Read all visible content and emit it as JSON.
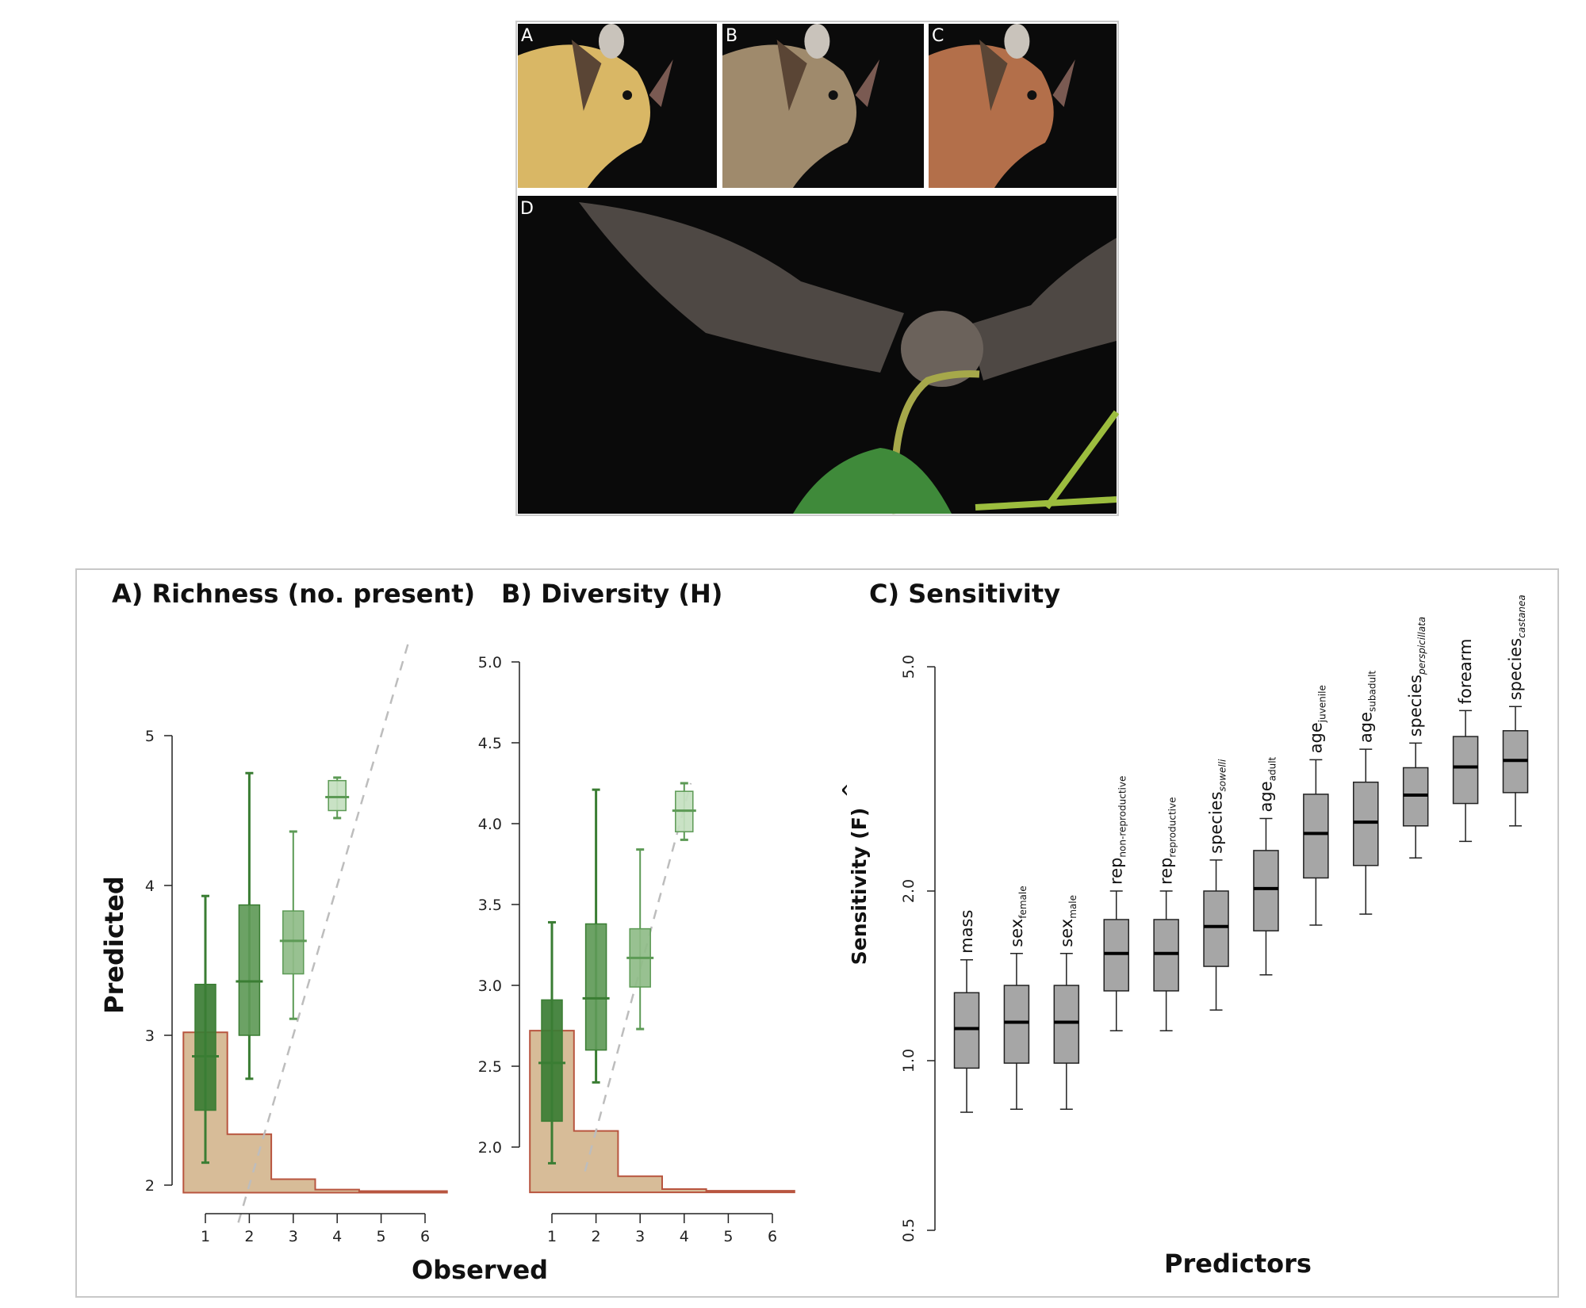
{
  "photos": {
    "panels": [
      {
        "label": "A",
        "fur": "#d9b765"
      },
      {
        "label": "B",
        "fur": "#9f8a6c"
      },
      {
        "label": "C",
        "fur": "#b36f4a"
      },
      {
        "label": "D",
        "fur": "#6b625b"
      }
    ]
  },
  "chart_data": [
    {
      "type": "boxplot",
      "title": "A) Richness (no. present)",
      "xlabel": "Observed",
      "ylabel": "Predicted",
      "xticks": [
        1,
        2,
        3,
        4,
        5,
        6
      ],
      "yticks": [
        2,
        3,
        4,
        5
      ],
      "reference_line": "y = x (dashed grey)",
      "box_colors": [
        "#3b7d34",
        "#5f9a58",
        "#8fbc88",
        "#c4dfc0"
      ],
      "boxes": [
        {
          "x": 1,
          "whisker_low": 2.15,
          "q1": 2.5,
          "median": 2.86,
          "q3": 3.34,
          "whisker_high": 3.93
        },
        {
          "x": 2,
          "whisker_low": 2.71,
          "q1": 3.0,
          "median": 3.36,
          "q3": 3.87,
          "whisker_high": 4.75
        },
        {
          "x": 3,
          "whisker_low": 3.11,
          "q1": 3.41,
          "median": 3.63,
          "q3": 3.83,
          "whisker_high": 4.36
        },
        {
          "x": 4,
          "whisker_low": 4.45,
          "q1": 4.5,
          "median": 4.59,
          "q3": 4.7,
          "whisker_high": 4.72
        }
      ],
      "histogram": {
        "base": 1.95,
        "x": [
          1,
          2,
          3,
          4,
          5,
          6
        ],
        "tops": [
          3.02,
          2.34,
          2.04,
          1.97,
          1.96,
          1.96
        ],
        "fill": "#d7bc98",
        "stroke": "#b8553f"
      }
    },
    {
      "type": "boxplot",
      "title": "B) Diversity (H)",
      "xlabel": "Observed",
      "ylabel": "",
      "xticks": [
        1,
        2,
        3,
        4,
        5,
        6
      ],
      "yticks": [
        "2.0",
        "2.5",
        "3.0",
        "3.5",
        "4.0",
        "4.5",
        "5.0"
      ],
      "reference_line": "y = x (dashed grey)",
      "box_colors": [
        "#3b7d34",
        "#5f9a58",
        "#8fbc88",
        "#c4dfc0"
      ],
      "boxes": [
        {
          "x": 1,
          "whisker_low": 1.9,
          "q1": 2.16,
          "median": 2.52,
          "q3": 2.91,
          "whisker_high": 3.39
        },
        {
          "x": 2,
          "whisker_low": 2.4,
          "q1": 2.6,
          "median": 2.92,
          "q3": 3.38,
          "whisker_high": 4.21
        },
        {
          "x": 3,
          "whisker_low": 2.73,
          "q1": 2.99,
          "median": 3.17,
          "q3": 3.35,
          "whisker_high": 3.84
        },
        {
          "x": 4,
          "whisker_low": 3.9,
          "q1": 3.95,
          "median": 4.08,
          "q3": 4.2,
          "whisker_high": 4.25
        }
      ],
      "histogram": {
        "base": 1.72,
        "x": [
          1,
          2,
          3,
          4,
          5,
          6
        ],
        "tops": [
          2.72,
          2.1,
          1.82,
          1.74,
          1.73,
          1.73
        ],
        "fill": "#d7bc98",
        "stroke": "#b8553f"
      }
    },
    {
      "type": "boxplot",
      "title": "C) Sensitivity",
      "xlabel": "Predictors",
      "ylabel": "Sensitivity (F)",
      "ylabel_hat": "^",
      "yscale": "log",
      "yticks": [
        "0.5",
        "1.0",
        "2.0",
        "5.0"
      ],
      "box_color": "#a6a6a6",
      "boxes": [
        {
          "main": "mass",
          "sub": "",
          "sub_italic": false,
          "whisker_low": 0.81,
          "q1": 0.97,
          "median": 1.14,
          "q3": 1.32,
          "whisker_high": 1.51
        },
        {
          "main": "sex",
          "sub": "female",
          "sub_italic": false,
          "whisker_low": 0.82,
          "q1": 0.99,
          "median": 1.17,
          "q3": 1.36,
          "whisker_high": 1.55
        },
        {
          "main": "sex",
          "sub": "male",
          "sub_italic": false,
          "whisker_low": 0.82,
          "q1": 0.99,
          "median": 1.17,
          "q3": 1.36,
          "whisker_high": 1.55
        },
        {
          "main": "rep",
          "sub": "non-reproductive",
          "sub_italic": false,
          "whisker_low": 1.13,
          "q1": 1.33,
          "median": 1.55,
          "q3": 1.78,
          "whisker_high": 2.0
        },
        {
          "main": "rep",
          "sub": "reproductive",
          "sub_italic": false,
          "whisker_low": 1.13,
          "q1": 1.33,
          "median": 1.55,
          "q3": 1.78,
          "whisker_high": 2.0
        },
        {
          "main": "species",
          "sub": "sowelli",
          "sub_italic": true,
          "whisker_low": 1.23,
          "q1": 1.47,
          "median": 1.73,
          "q3": 2.0,
          "whisker_high": 2.27
        },
        {
          "main": "age",
          "sub": "adult",
          "sub_italic": false,
          "whisker_low": 1.42,
          "q1": 1.7,
          "median": 2.02,
          "q3": 2.36,
          "whisker_high": 2.69
        },
        {
          "main": "age",
          "sub": "juvenile",
          "sub_italic": false,
          "whisker_low": 1.74,
          "q1": 2.11,
          "median": 2.53,
          "q3": 2.97,
          "whisker_high": 3.42
        },
        {
          "main": "age",
          "sub": "subadult",
          "sub_italic": false,
          "whisker_low": 1.82,
          "q1": 2.22,
          "median": 2.65,
          "q3": 3.12,
          "whisker_high": 3.57
        },
        {
          "main": "species",
          "sub": "perspicillata",
          "sub_italic": true,
          "whisker_low": 2.29,
          "q1": 2.61,
          "median": 2.96,
          "q3": 3.31,
          "whisker_high": 3.66
        },
        {
          "main": "forearm",
          "sub": "",
          "sub_italic": false,
          "whisker_low": 2.45,
          "q1": 2.86,
          "median": 3.32,
          "q3": 3.76,
          "whisker_high": 4.18
        },
        {
          "main": "species",
          "sub": "castanea",
          "sub_italic": true,
          "whisker_low": 2.61,
          "q1": 2.99,
          "median": 3.41,
          "q3": 3.85,
          "whisker_high": 4.25
        }
      ]
    }
  ]
}
